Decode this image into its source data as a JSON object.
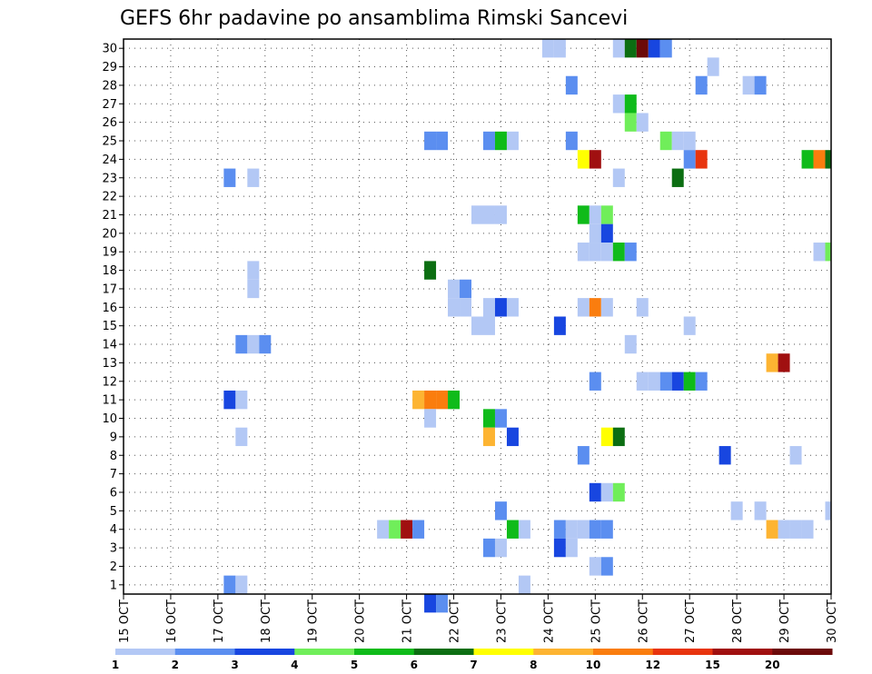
{
  "chart_data": {
    "type": "heatmap",
    "title": "GEFS 6hr padavine po ansamblima Rimski Sancevi",
    "xlabel": "",
    "ylabel": "",
    "x_tick_labels": [
      "15 OCT",
      "16 OCT",
      "17 OCT",
      "18 OCT",
      "19 OCT",
      "20 OCT",
      "21 OCT",
      "22 OCT",
      "23 OCT",
      "24 OCT",
      "25 OCT",
      "26 OCT",
      "27 OCT",
      "28 OCT",
      "29 OCT",
      "30 OCT"
    ],
    "y_tick_labels": [
      "1",
      "2",
      "3",
      "4",
      "5",
      "6",
      "7",
      "8",
      "9",
      "10",
      "11",
      "12",
      "13",
      "14",
      "15",
      "16",
      "17",
      "18",
      "19",
      "20",
      "21",
      "22",
      "23",
      "24",
      "25",
      "26",
      "27",
      "28",
      "29",
      "30"
    ],
    "x_unit": "6-hour steps from 15 OCT 00Z",
    "x_range": [
      0,
      60
    ],
    "y_range": [
      0.5,
      30.5
    ],
    "legend_position": "bottom",
    "legend_labels": [
      "1",
      "2",
      "3",
      "4",
      "5",
      "6",
      "7",
      "8",
      "10",
      "12",
      "15",
      "20"
    ],
    "legend_colors": [
      "#b3c8f5",
      "#5b8ef0",
      "#1846e0",
      "#70ee5a",
      "#0fbb1a",
      "#0c6e12",
      "#ffff00",
      "#fdb432",
      "#fa7d0e",
      "#e8340e",
      "#a01010",
      "#6c0a0a"
    ],
    "bin_colors": {
      "1": "#b3c8f5",
      "2": "#5b8ef0",
      "3": "#1846e0",
      "4": "#70ee5a",
      "5": "#0fbb1a",
      "6": "#0c6e12",
      "7": "#ffff00",
      "8": "#fdb432",
      "10": "#fa7d0e",
      "12": "#e8340e",
      "15": "#a01010",
      "20": "#6c0a0a"
    },
    "cells": [
      [
        36,
        30,
        1
      ],
      [
        37,
        30,
        1
      ],
      [
        42,
        30,
        1
      ],
      [
        43,
        30,
        6
      ],
      [
        44,
        30,
        20
      ],
      [
        45,
        30,
        3
      ],
      [
        46,
        30,
        2
      ],
      [
        50,
        29,
        1
      ],
      [
        38,
        28,
        2
      ],
      [
        49,
        28,
        2
      ],
      [
        53,
        28,
        1
      ],
      [
        54,
        28,
        2
      ],
      [
        42,
        27,
        1
      ],
      [
        43,
        27,
        5
      ],
      [
        43,
        26,
        4
      ],
      [
        44,
        26,
        1
      ],
      [
        26,
        25,
        2
      ],
      [
        27,
        25,
        2
      ],
      [
        31,
        25,
        2
      ],
      [
        32,
        25,
        5
      ],
      [
        33,
        25,
        1
      ],
      [
        38,
        25,
        2
      ],
      [
        46,
        25,
        4
      ],
      [
        47,
        25,
        1
      ],
      [
        48,
        25,
        1
      ],
      [
        39,
        24,
        7
      ],
      [
        40,
        24,
        15
      ],
      [
        48,
        24,
        2
      ],
      [
        49,
        24,
        12
      ],
      [
        58,
        24,
        5
      ],
      [
        59,
        24,
        10
      ],
      [
        60,
        24,
        6
      ],
      [
        9,
        23,
        2
      ],
      [
        11,
        23,
        1
      ],
      [
        42,
        23,
        1
      ],
      [
        47,
        23,
        6
      ],
      [
        30,
        21,
        1
      ],
      [
        31,
        21,
        1
      ],
      [
        32,
        21,
        1
      ],
      [
        39,
        21,
        5
      ],
      [
        40,
        21,
        1
      ],
      [
        41,
        21,
        4
      ],
      [
        40,
        20,
        1
      ],
      [
        41,
        20,
        3
      ],
      [
        39,
        19,
        1
      ],
      [
        40,
        19,
        1
      ],
      [
        41,
        19,
        1
      ],
      [
        42,
        19,
        5
      ],
      [
        43,
        19,
        2
      ],
      [
        59,
        19,
        1
      ],
      [
        60,
        19,
        4
      ],
      [
        11,
        18,
        1
      ],
      [
        26,
        18,
        6
      ],
      [
        11,
        17,
        1
      ],
      [
        28,
        17,
        1
      ],
      [
        29,
        17,
        2
      ],
      [
        28,
        16,
        1
      ],
      [
        29,
        16,
        1
      ],
      [
        31,
        16,
        1
      ],
      [
        32,
        16,
        3
      ],
      [
        33,
        16,
        1
      ],
      [
        39,
        16,
        1
      ],
      [
        40,
        16,
        10
      ],
      [
        41,
        16,
        1
      ],
      [
        44,
        16,
        1
      ],
      [
        30,
        15,
        1
      ],
      [
        31,
        15,
        1
      ],
      [
        37,
        15,
        3
      ],
      [
        48,
        15,
        1
      ],
      [
        10,
        14,
        2
      ],
      [
        11,
        14,
        1
      ],
      [
        12,
        14,
        2
      ],
      [
        43,
        14,
        1
      ],
      [
        55,
        13,
        8
      ],
      [
        56,
        13,
        15
      ],
      [
        40,
        12,
        2
      ],
      [
        44,
        12,
        1
      ],
      [
        45,
        12,
        1
      ],
      [
        46,
        12,
        2
      ],
      [
        47,
        12,
        3
      ],
      [
        48,
        12,
        5
      ],
      [
        49,
        12,
        2
      ],
      [
        9,
        11,
        3
      ],
      [
        10,
        11,
        1
      ],
      [
        25,
        11,
        8
      ],
      [
        26,
        11,
        10
      ],
      [
        27,
        11,
        10
      ],
      [
        28,
        11,
        5
      ],
      [
        26,
        10,
        1
      ],
      [
        31,
        10,
        5
      ],
      [
        32,
        10,
        2
      ],
      [
        10,
        9,
        1
      ],
      [
        31,
        9,
        8
      ],
      [
        33,
        9,
        3
      ],
      [
        41,
        9,
        7
      ],
      [
        42,
        9,
        6
      ],
      [
        39,
        8,
        2
      ],
      [
        51,
        8,
        3
      ],
      [
        57,
        8,
        1
      ],
      [
        40,
        6,
        3
      ],
      [
        41,
        6,
        1
      ],
      [
        42,
        6,
        4
      ],
      [
        32,
        5,
        2
      ],
      [
        52,
        5,
        1
      ],
      [
        54,
        5,
        1
      ],
      [
        60,
        5,
        1
      ],
      [
        22,
        4,
        1
      ],
      [
        23,
        4,
        4
      ],
      [
        24,
        4,
        15
      ],
      [
        25,
        4,
        2
      ],
      [
        33,
        4,
        5
      ],
      [
        34,
        4,
        1
      ],
      [
        37,
        4,
        2
      ],
      [
        38,
        4,
        1
      ],
      [
        39,
        4,
        1
      ],
      [
        40,
        4,
        2
      ],
      [
        41,
        4,
        2
      ],
      [
        55,
        4,
        8
      ],
      [
        56,
        4,
        1
      ],
      [
        57,
        4,
        1
      ],
      [
        58,
        4,
        1
      ],
      [
        31,
        3,
        2
      ],
      [
        32,
        3,
        1
      ],
      [
        37,
        3,
        3
      ],
      [
        38,
        3,
        1
      ],
      [
        40,
        2,
        1
      ],
      [
        41,
        2,
        2
      ],
      [
        9,
        1,
        2
      ],
      [
        10,
        1,
        1
      ],
      [
        34,
        1,
        1
      ],
      [
        26,
        0,
        3
      ],
      [
        27,
        0,
        2
      ]
    ]
  }
}
